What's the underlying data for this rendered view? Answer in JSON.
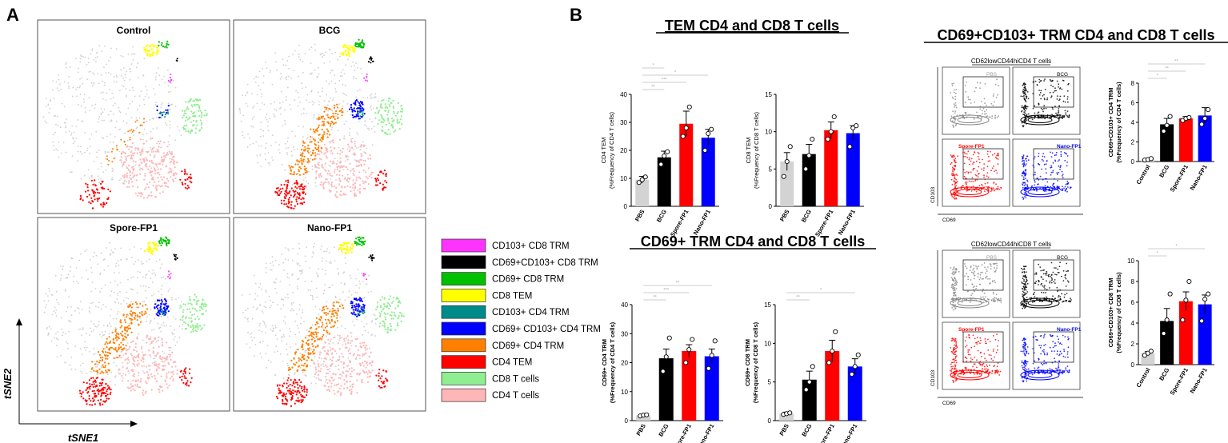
{
  "panels": {
    "a_label": "A",
    "b_label": "B"
  },
  "tsne": {
    "titles": [
      "Control",
      "BCG",
      "Spore-FP1",
      "Nano-FP1"
    ],
    "axis_y": "tSNE2",
    "axis_x": "tSNE1",
    "legend": [
      {
        "label": "CD103+ CD8 TRM",
        "color": "#ff33ff"
      },
      {
        "label": "CD69+CD103+ CD8 TRM",
        "color": "#000000"
      },
      {
        "label": "CD69+ CD8 TRM",
        "color": "#00c000"
      },
      {
        "label": "CD8 TEM",
        "color": "#ffff00"
      },
      {
        "label": "CD103+ CD4 TRM",
        "color": "#008b8b"
      },
      {
        "label": "CD69+ CD103+ CD4 TRM",
        "color": "#0000ff"
      },
      {
        "label": "CD69+ CD4 TRM",
        "color": "#ff8000"
      },
      {
        "label": "CD4 TEM",
        "color": "#ff0000"
      },
      {
        "label": "CD8 T cells",
        "color": "#90ee90"
      },
      {
        "label": "CD4 T cells",
        "color": "#ffb6b6"
      }
    ]
  },
  "sections": {
    "tem_title": "TEM CD4 and CD8 T cells",
    "cd69_title": "CD69+ TRM CD4 and CD8 T cells",
    "trm_title": "CD69+CD103+ TRM CD4 and CD8 T cells"
  },
  "flow": {
    "cd4_header": "CD62lowCD44hiCD4 T cells",
    "cd8_header": "CD62lowCD44hiCD8 T cells",
    "panel_labels": [
      "PBS",
      "BCG",
      "Spore-FP1",
      "Nano-FP1"
    ],
    "x_axis": "CD69",
    "y_axis": "CD103"
  },
  "chart_data": [
    {
      "id": "cd4tem",
      "type": "bar",
      "categories": [
        "PBS",
        "BCG",
        "Spore-FP1",
        "Nano-FP1"
      ],
      "values": [
        9.5,
        17.5,
        29.5,
        24.5
      ],
      "errors": [
        1.2,
        2.2,
        4.5,
        3.0
      ],
      "points": [
        [
          8.5,
          9.5,
          10.5
        ],
        [
          15,
          18,
          19.5
        ],
        [
          25,
          28,
          35.5
        ],
        [
          20,
          26,
          27.5
        ]
      ],
      "ylim": [
        0,
        40
      ],
      "yticks": [
        "0",
        "10",
        "20",
        "30",
        "40"
      ],
      "ylabel1": "CD4 TEM",
      "ylabel2": "(%Frequency of CD4 T cells)",
      "sig": [
        "**",
        "***",
        "*",
        "*"
      ]
    },
    {
      "id": "cd8tem",
      "type": "bar",
      "categories": [
        "PBS",
        "BCG",
        "Spore-FP1",
        "Nano-FP1"
      ],
      "values": [
        6,
        7,
        10.2,
        9.8
      ],
      "errors": [
        1.2,
        1.3,
        1.1,
        1.0
      ],
      "points": [
        [
          4,
          6,
          8
        ],
        [
          5,
          6.8,
          9
        ],
        [
          9,
          10,
          12
        ],
        [
          8,
          10.5,
          10.8
        ]
      ],
      "ylim": [
        0,
        15
      ],
      "yticks": [
        "0",
        "5",
        "10",
        "15"
      ],
      "ylabel1": "CD8 TEM",
      "ylabel2": "(%Frequency of CD8 T cells)",
      "sig": []
    },
    {
      "id": "cd69cd4",
      "type": "bar",
      "categories": [
        "PBS",
        "BCG",
        "Spore-FP1",
        "Nano-FP1"
      ],
      "values": [
        1.8,
        21.5,
        24,
        22.2
      ],
      "errors": [
        0.3,
        3.2,
        2.2,
        2.5
      ],
      "points": [
        [
          1.6,
          1.9,
          2
        ],
        [
          17,
          22,
          28.5
        ],
        [
          20,
          24.5,
          28
        ],
        [
          18,
          22.5,
          27.5
        ]
      ],
      "ylim": [
        0,
        40
      ],
      "yticks": [
        "0",
        "10",
        "20",
        "30",
        "40"
      ],
      "ylabel1": "CD69+ CD4 TRM",
      "ylabel2": "(%Frequency of CD4 T cells)",
      "sig": [
        "**",
        "***",
        "**"
      ]
    },
    {
      "id": "cd69cd8",
      "type": "bar",
      "categories": [
        "PBS",
        "BCG",
        "Spore-FP1",
        "Nano-FP1"
      ],
      "values": [
        0.9,
        5.3,
        9,
        7
      ],
      "errors": [
        0.2,
        1.1,
        1.4,
        1.0
      ],
      "points": [
        [
          0.8,
          0.9,
          1.0
        ],
        [
          4,
          5,
          7
        ],
        [
          7.5,
          9,
          11.5
        ],
        [
          6,
          7,
          8.5
        ]
      ],
      "ylim": [
        0,
        15
      ],
      "yticks": [
        "0",
        "5",
        "10",
        "15"
      ],
      "ylabel1": "CD69+ CD8 TRM",
      "ylabel2": "(%Frequency of CD8 T cells)",
      "sig": [
        "**",
        "*"
      ]
    },
    {
      "id": "trmcd4",
      "type": "bar",
      "categories": [
        "Control",
        "BCG",
        "Spore-FP1",
        "Nano-FP1"
      ],
      "values": [
        0.2,
        3.8,
        4.4,
        4.7
      ],
      "errors": [
        0.05,
        0.6,
        0.2,
        0.8
      ],
      "points": [
        [
          0.15,
          0.2,
          0.3
        ],
        [
          3.1,
          3.7,
          4.6
        ],
        [
          4.2,
          4.4,
          4.5
        ],
        [
          3.8,
          4.4,
          5.3
        ]
      ],
      "ylim": [
        0,
        8
      ],
      "yticks": [
        "0",
        "2",
        "4",
        "6",
        "8"
      ],
      "ylabel1": "CD69+CD103+ CD4 TRM",
      "ylabel2": "(%Frequency of CD4 T cells)",
      "sig": [
        "*",
        "**",
        "**"
      ]
    },
    {
      "id": "trmcd8",
      "type": "bar",
      "categories": [
        "Control",
        "BCG",
        "Spore-FP1",
        "Nano-FP1"
      ],
      "values": [
        1.1,
        4.2,
        6.1,
        5.8
      ],
      "errors": [
        0.15,
        1.2,
        0.9,
        0.9
      ],
      "points": [
        [
          0.9,
          1.1,
          1.3
        ],
        [
          3,
          4.3,
          6.8
        ],
        [
          4.3,
          6.2,
          8
        ],
        [
          4.2,
          6.3,
          6.8
        ]
      ],
      "ylim": [
        0,
        10
      ],
      "yticks": [
        "0",
        "2",
        "4",
        "6",
        "8",
        "10"
      ],
      "ylabel1": "CD69+CD103+ CD8 TRM",
      "ylabel2": "(%Frequency of CD8 T cells)",
      "sig": [
        "*",
        "*"
      ]
    }
  ]
}
